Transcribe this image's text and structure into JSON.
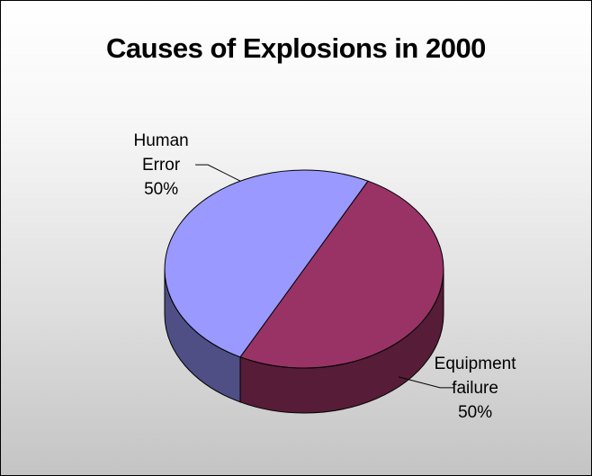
{
  "chart_data": {
    "type": "pie",
    "title": "Causes of Explosions in 2000",
    "three_d": true,
    "legend": "none",
    "slices": [
      {
        "label_lines": [
          "Equipment",
          "failure",
          "50%"
        ],
        "category": "Equipment failure",
        "value": 50,
        "color": "#993366",
        "side_color": "#561c38"
      },
      {
        "label_lines": [
          "Human",
          "Error",
          "50%"
        ],
        "category": "Human Error",
        "value": 50,
        "color": "#9999ff",
        "side_color": "#4f4f85"
      }
    ]
  }
}
